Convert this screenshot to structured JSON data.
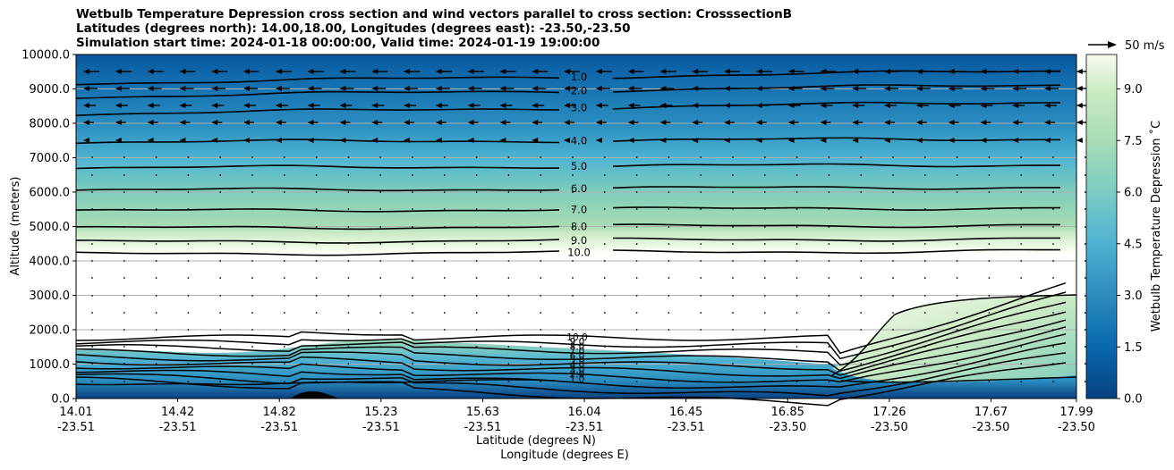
{
  "chart_data": {
    "type": "heatmap",
    "title": [
      "Wetbulb Temperature Depression cross section and wind vectors parallel to cross section: CrosssectionB",
      "Latitudes (degrees north): 14.00,18.00, Longitudes (degrees east): -23.50,-23.50",
      "Simulation start time: 2024-01-18 00:00:00, Valid time: 2024-01-19 19:00:00"
    ],
    "ylabel": "Altitude (meters)",
    "xlabel_lat": "Latitude (degrees N)",
    "xlabel_lon": "Longitude (degrees E)",
    "ylim": [
      0,
      10000
    ],
    "yticks": [
      "0.0",
      "1000.0",
      "2000.0",
      "3000.0",
      "4000.0",
      "5000.0",
      "6000.0",
      "7000.0",
      "8000.0",
      "9000.0",
      "10000.0"
    ],
    "xticks_lat": [
      "14.01",
      "14.42",
      "14.82",
      "15.23",
      "15.63",
      "16.04",
      "16.45",
      "16.85",
      "17.26",
      "17.67",
      "17.99"
    ],
    "xticks_lon": [
      "-23.51",
      "-23.51",
      "-23.51",
      "-23.51",
      "-23.51",
      "-23.51",
      "-23.51",
      "-23.50",
      "-23.50",
      "-23.50",
      "-23.50"
    ],
    "colorbar": {
      "label": "Wetbulb Temperature Depression ˚C",
      "range": [
        0,
        10
      ],
      "ticks": [
        "0.0",
        "1.5",
        "3.0",
        "4.5",
        "6.0",
        "7.5",
        "9.0"
      ],
      "colormap": "GnBu_r"
    },
    "upper_contours": [
      {
        "label": "1.0",
        "altitude": 9350
      },
      {
        "label": "2.0",
        "altitude": 8950
      },
      {
        "label": "3.0",
        "altitude": 8450
      },
      {
        "label": "4.0",
        "altitude": 7500
      },
      {
        "label": "5.0",
        "altitude": 6750
      },
      {
        "label": "6.0",
        "altitude": 6100
      },
      {
        "label": "7.0",
        "altitude": 5500
      },
      {
        "label": "8.0",
        "altitude": 5000
      },
      {
        "label": "9.0",
        "altitude": 4600
      },
      {
        "label": "10.0",
        "altitude": 4250
      }
    ],
    "lower_contour_labels": [
      "10.0",
      "9.0",
      "8.0",
      "7.0",
      "6.0",
      "5.0",
      "4.0",
      "3.0",
      "2.0",
      "1.0"
    ],
    "wind_key": "50 m/s",
    "wind_direction_upper": "toward lower latitude",
    "grid": true
  },
  "colors": {
    "deep": "#084081",
    "mid": "#4eb3d3",
    "light": "#a8ddb5",
    "pale": "#f7fcf0",
    "contour": "#000000"
  }
}
